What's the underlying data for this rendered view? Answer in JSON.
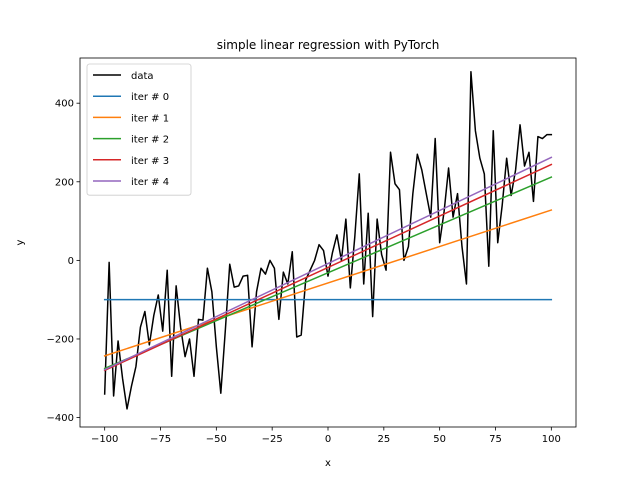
{
  "chart_data": {
    "type": "line",
    "title": "simple linear regression with PyTorch",
    "xlabel": "x",
    "ylabel": "y",
    "xlim": [
      -111.05,
      111.05
    ],
    "ylim": [
      -424,
      515
    ],
    "xticks": [
      -100,
      -75,
      -50,
      -25,
      0,
      25,
      50,
      75,
      100
    ],
    "xtick_labels": [
      "−100",
      "−75",
      "−50",
      "−25",
      "0",
      "25",
      "50",
      "75",
      "100"
    ],
    "yticks": [
      -400,
      -200,
      0,
      200,
      400
    ],
    "ytick_labels": [
      "−400",
      "−200",
      "0",
      "200",
      "400"
    ],
    "grid": false,
    "legend": "top-left",
    "series": [
      {
        "name": "data",
        "color": "#000000",
        "kind": "data",
        "x": [
          -100,
          -98,
          -96,
          -94,
          -92,
          -90,
          -88,
          -86,
          -84,
          -82,
          -80,
          -78,
          -76,
          -74,
          -72,
          -70,
          -68,
          -66,
          -64,
          -62,
          -60,
          -58,
          -56,
          -54,
          -52,
          -50,
          -48,
          -46,
          -44,
          -42,
          -40,
          -38,
          -36,
          -34,
          -32,
          -30,
          -28,
          -26,
          -24,
          -22,
          -20,
          -18,
          -16,
          -14,
          -12,
          -10,
          -8,
          -6,
          -4,
          -2,
          0,
          2,
          4,
          6,
          8,
          10,
          12,
          14,
          16,
          18,
          20,
          22,
          24,
          26,
          28,
          30,
          32,
          34,
          36,
          38,
          40,
          42,
          44,
          46,
          48,
          50,
          52,
          54,
          56,
          58,
          60,
          62,
          64,
          66,
          68,
          70,
          72,
          74,
          76,
          78,
          80,
          82,
          84,
          86,
          88,
          90,
          92,
          94,
          96,
          98,
          100
        ],
        "y": [
          -340,
          -5,
          -345,
          -205,
          -300,
          -378,
          -320,
          -270,
          -170,
          -130,
          -215,
          -140,
          -88,
          -180,
          -25,
          -295,
          -65,
          -170,
          -245,
          -200,
          -295,
          -150,
          -152,
          -20,
          -80,
          -220,
          -338,
          -180,
          -10,
          -68,
          -65,
          -40,
          -38,
          -220,
          -80,
          -20,
          -35,
          0,
          -20,
          -150,
          -30,
          -60,
          22,
          -195,
          -190,
          -50,
          -25,
          0,
          40,
          25,
          -40,
          20,
          65,
          0,
          105,
          -70,
          60,
          220,
          -60,
          120,
          -143,
          105,
          15,
          -25,
          275,
          195,
          180,
          0,
          35,
          170,
          270,
          230,
          170,
          110,
          310,
          45,
          125,
          235,
          110,
          170,
          35,
          -60,
          480,
          330,
          260,
          220,
          -15,
          330,
          45,
          140,
          260,
          165,
          230,
          345,
          240,
          275,
          150,
          315,
          310,
          320,
          320
        ]
      },
      {
        "name": "iter # 0",
        "color": "#1f77b4",
        "kind": "fit",
        "x": [
          -100,
          100
        ],
        "y": [
          -100,
          -100
        ]
      },
      {
        "name": "iter # 1",
        "color": "#ff7f0e",
        "kind": "fit",
        "x": [
          -100,
          100
        ],
        "y": [
          -243,
          128
        ]
      },
      {
        "name": "iter # 2",
        "color": "#2ca02c",
        "kind": "fit",
        "x": [
          -100,
          100
        ],
        "y": [
          -275,
          212
        ]
      },
      {
        "name": "iter # 3",
        "color": "#d62728",
        "kind": "fit",
        "x": [
          -100,
          100
        ],
        "y": [
          -280,
          244
        ]
      },
      {
        "name": "iter # 4",
        "color": "#9467bd",
        "kind": "fit",
        "x": [
          -100,
          100
        ],
        "y": [
          -278,
          262
        ]
      }
    ]
  }
}
